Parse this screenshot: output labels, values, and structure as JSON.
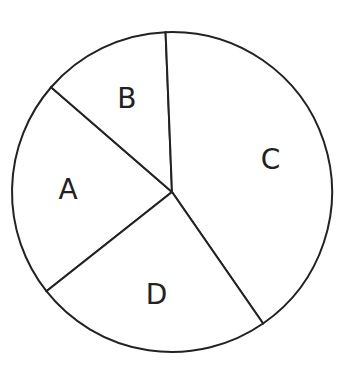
{
  "chart_data": {
    "type": "pie",
    "categories": [
      "A",
      "B",
      "C",
      "D"
    ],
    "values": [
      22,
      13,
      41,
      24
    ]
  }
}
